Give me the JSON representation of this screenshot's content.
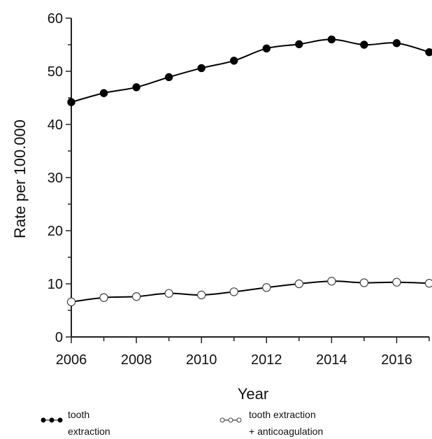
{
  "chart_data": {
    "type": "line",
    "xlabel": "Year",
    "ylabel": "Rate per 100.000",
    "xlim": [
      2006,
      2017
    ],
    "ylim": [
      0,
      60
    ],
    "x_ticks": [
      2006,
      2008,
      2010,
      2012,
      2014,
      2016
    ],
    "x_tick_labels": [
      "2006",
      "2008",
      "2010",
      "2012",
      "2014",
      "2016"
    ],
    "y_ticks": [
      0,
      10,
      20,
      30,
      40,
      50,
      60
    ],
    "y_tick_labels": [
      "0",
      "10",
      "20",
      "30",
      "40",
      "50",
      "60"
    ],
    "x": [
      2006,
      2007,
      2008,
      2009,
      2010,
      2011,
      2012,
      2013,
      2014,
      2015,
      2016,
      2017
    ],
    "series": [
      {
        "name": "tooth extraction",
        "legend_lines": [
          "tooth",
          "extraction"
        ],
        "marker": "filled-circle",
        "color": "#000000",
        "values": [
          44.2,
          45.9,
          47.0,
          48.9,
          50.6,
          52.0,
          54.3,
          55.1,
          56.0,
          55.0,
          55.3,
          53.6
        ]
      },
      {
        "name": "tooth extraction + anticoagulation",
        "legend_lines": [
          "tooth extraction",
          "+ anticoagulation"
        ],
        "marker": "open-circle",
        "color": "#000000",
        "values": [
          6.6,
          7.4,
          7.6,
          8.2,
          7.9,
          8.5,
          9.3,
          10.0,
          10.5,
          10.2,
          10.3,
          10.1
        ]
      }
    ],
    "grid": false,
    "legend_position": "bottom"
  }
}
